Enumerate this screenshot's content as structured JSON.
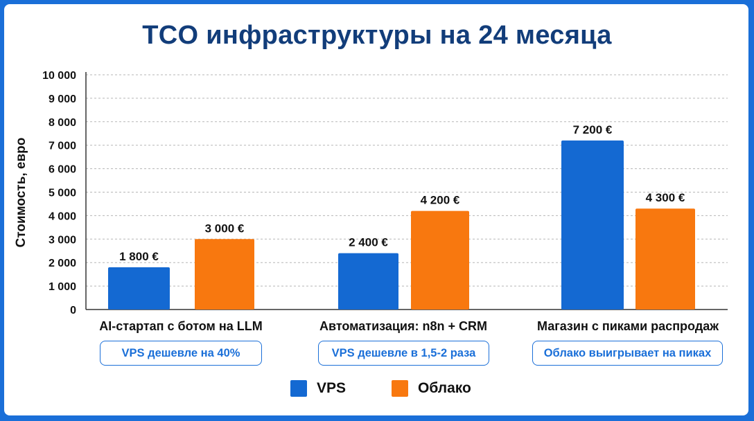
{
  "chart_data": {
    "type": "bar",
    "title": "TCO инфраструктуры на 24 месяца",
    "ylabel": "Стоимость, евро",
    "xlabel": "",
    "ylim": [
      0,
      10000
    ],
    "y_ticks": [
      "0",
      "1 000",
      "2 000",
      "3 000",
      "4 000",
      "5 000",
      "6 000",
      "7 000",
      "8 000",
      "9 000",
      "10 000"
    ],
    "categories": [
      "AI-стартап с ботом на LLM",
      "Автоматизация: n8n + CRM",
      "Магазин с пиками распродаж"
    ],
    "series": [
      {
        "name": "VPS",
        "color": "#1469d2",
        "values": [
          1800,
          2400,
          7200
        ],
        "labels": [
          "1 800 €",
          "2 400 €",
          "7 200 €"
        ]
      },
      {
        "name": "Облако",
        "color": "#f8780f",
        "values": [
          3000,
          4200,
          4300
        ],
        "labels": [
          "3 000 €",
          "4 200 €",
          "4 300 €"
        ]
      }
    ],
    "annotations": [
      "VPS дешевле на 40%",
      "VPS дешевле в 1,5-2 раза",
      "Облако выигрывает на пиках"
    ],
    "grid": true,
    "legend": "bottom-center"
  }
}
